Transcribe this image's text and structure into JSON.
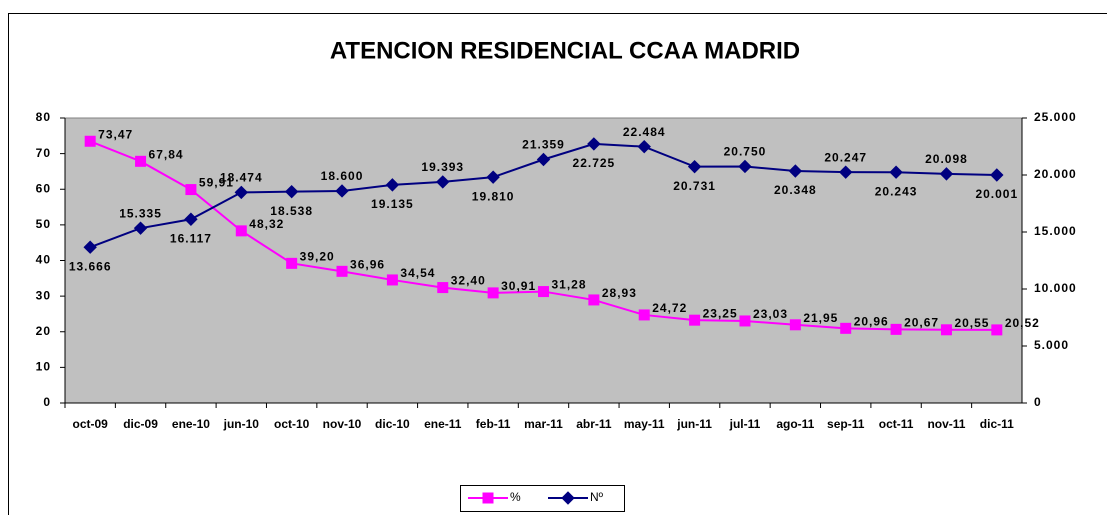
{
  "chart_data": {
    "type": "line",
    "title": "ATENCION RESIDENCIAL CCAA MADRID",
    "categories": [
      "oct-09",
      "dic-09",
      "ene-10",
      "jun-10",
      "oct-10",
      "nov-10",
      "dic-10",
      "ene-11",
      "feb-11",
      "mar-11",
      "abr-11",
      "may-11",
      "jun-11",
      "jul-11",
      "ago-11",
      "sep-11",
      "oct-11",
      "nov-11",
      "dic-11"
    ],
    "series": [
      {
        "name": "%",
        "color": "#ff00ff",
        "marker": "square",
        "values": [
          73.47,
          67.84,
          59.91,
          48.32,
          39.2,
          36.96,
          34.54,
          32.4,
          30.91,
          31.28,
          28.93,
          24.72,
          23.25,
          23.03,
          21.95,
          20.96,
          20.67,
          20.55,
          20.52
        ],
        "value_labels": [
          "73,47",
          "67,84",
          "59,91",
          "48,32",
          "39,20",
          "36,96",
          "34,54",
          "32,40",
          "30,91",
          "31,28",
          "28,93",
          "24,72",
          "23,25",
          "23,03",
          "21,95",
          "20,96",
          "20,67",
          "20,55",
          "20,52"
        ]
      },
      {
        "name": "Nº",
        "color": "#000080",
        "marker": "diamond",
        "axis": "y2",
        "values": [
          13666,
          15335,
          16117,
          18474,
          18538,
          18600,
          19135,
          19393,
          19810,
          21359,
          22725,
          22484,
          20731,
          20750,
          20348,
          20247,
          20243,
          20098,
          20001
        ],
        "value_labels": [
          "13.666",
          "15.335",
          "16.117",
          "18.474",
          "18.538",
          "18.600",
          "19.135",
          "19.393",
          "19.810",
          "21.359",
          "22.725",
          "22.484",
          "20.731",
          "20.750",
          "20.348",
          "20.247",
          "20.243",
          "20.098",
          "20.001"
        ]
      }
    ],
    "ylim": [
      0,
      80
    ],
    "yticks": [
      0,
      10,
      20,
      30,
      40,
      50,
      60,
      70,
      80
    ],
    "y2lim": [
      0,
      25000
    ],
    "y2ticks": [
      0,
      {
        "value": 5000,
        "label": "5.000"
      },
      {
        "value": 10000,
        "label": "10.000"
      },
      {
        "value": 15000,
        "label": "15.000"
      },
      {
        "value": 20000,
        "label": "20.000"
      },
      {
        "value": 25000,
        "label": "25.000"
      }
    ],
    "legend": "bottom",
    "plot_background": "#c0c0c0"
  }
}
